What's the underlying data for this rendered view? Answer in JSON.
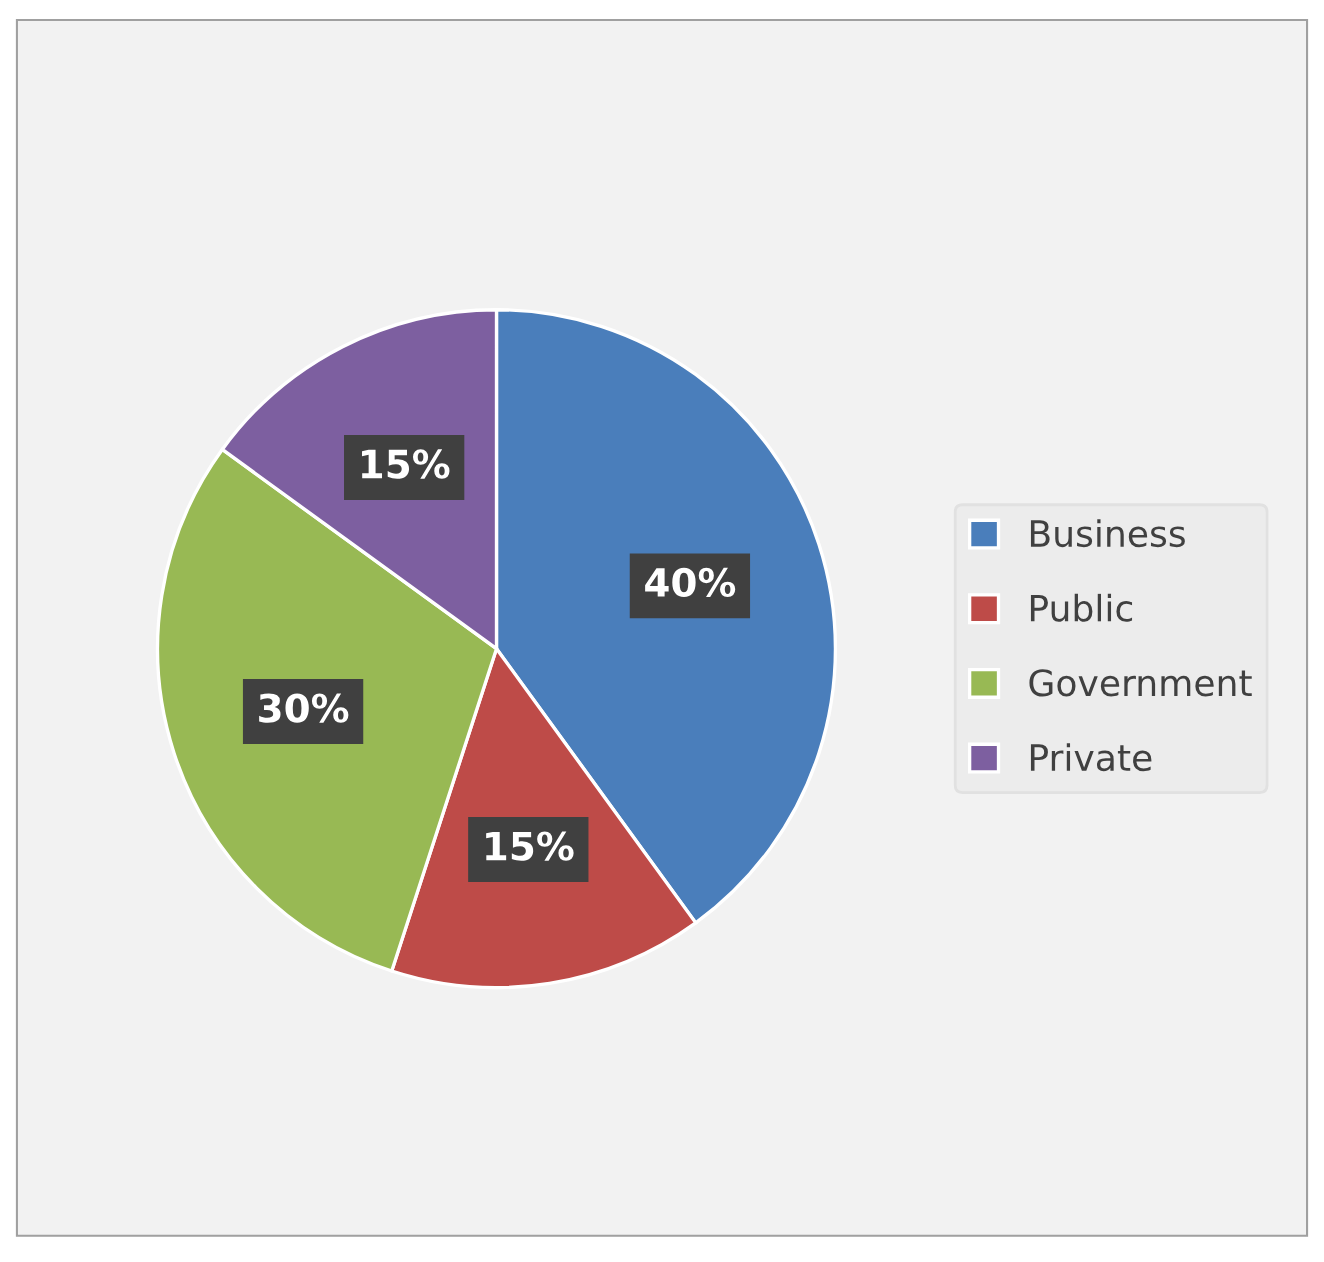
{
  "chart_data": {
    "type": "pie",
    "categories": [
      "Business",
      "Public",
      "Government",
      "Private"
    ],
    "values": [
      40,
      15,
      30,
      15
    ],
    "colors": [
      "#4a7ebb",
      "#be4b48",
      "#98b954",
      "#7d5fa0"
    ],
    "value_labels": [
      "40%",
      "15%",
      "30%",
      "15%"
    ],
    "legend": "right"
  }
}
